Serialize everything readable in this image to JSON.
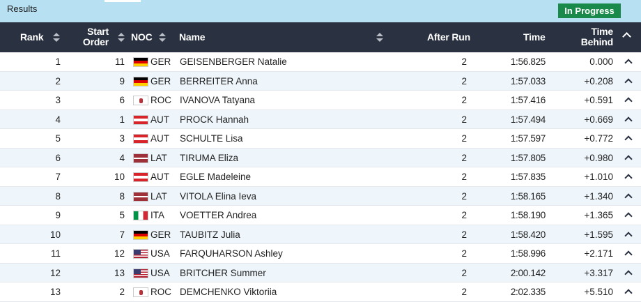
{
  "header": {
    "title": "Results",
    "status": "In Progress",
    "status_color": "#1a8a4a",
    "background_color": "#b7e1f3"
  },
  "columns": {
    "rank": "Rank",
    "start_order": "Start Order",
    "start_order_line1": "Start",
    "start_order_line2": "Order",
    "noc": "NOC",
    "name": "Name",
    "after_run": "After Run",
    "time": "Time",
    "time_behind": "Time Behind",
    "time_behind_line1": "Time",
    "time_behind_line2": "Behind",
    "header_color": "#2a3140"
  },
  "rows": [
    {
      "rank": "1",
      "start_order": "11",
      "noc": "GER",
      "name": "GEISENBERGER Natalie",
      "after_run": "2",
      "time": "1:56.825",
      "behind": "0.000"
    },
    {
      "rank": "2",
      "start_order": "9",
      "noc": "GER",
      "name": "BERREITER Anna",
      "after_run": "2",
      "time": "1:57.033",
      "behind": "+0.208"
    },
    {
      "rank": "3",
      "start_order": "6",
      "noc": "ROC",
      "name": "IVANOVA Tatyana",
      "after_run": "2",
      "time": "1:57.416",
      "behind": "+0.591"
    },
    {
      "rank": "4",
      "start_order": "1",
      "noc": "AUT",
      "name": "PROCK Hannah",
      "after_run": "2",
      "time": "1:57.494",
      "behind": "+0.669"
    },
    {
      "rank": "5",
      "start_order": "3",
      "noc": "AUT",
      "name": "SCHULTE Lisa",
      "after_run": "2",
      "time": "1:57.597",
      "behind": "+0.772"
    },
    {
      "rank": "6",
      "start_order": "4",
      "noc": "LAT",
      "name": "TIRUMA Eliza",
      "after_run": "2",
      "time": "1:57.805",
      "behind": "+0.980"
    },
    {
      "rank": "7",
      "start_order": "10",
      "noc": "AUT",
      "name": "EGLE Madeleine",
      "after_run": "2",
      "time": "1:57.835",
      "behind": "+1.010"
    },
    {
      "rank": "8",
      "start_order": "8",
      "noc": "LAT",
      "name": "VITOLA Elina Ieva",
      "after_run": "2",
      "time": "1:58.165",
      "behind": "+1.340"
    },
    {
      "rank": "9",
      "start_order": "5",
      "noc": "ITA",
      "name": "VOETTER Andrea",
      "after_run": "2",
      "time": "1:58.190",
      "behind": "+1.365"
    },
    {
      "rank": "10",
      "start_order": "7",
      "noc": "GER",
      "name": "TAUBITZ Julia",
      "after_run": "2",
      "time": "1:58.420",
      "behind": "+1.595"
    },
    {
      "rank": "11",
      "start_order": "12",
      "noc": "USA",
      "name": "FARQUHARSON Ashley",
      "after_run": "2",
      "time": "1:58.996",
      "behind": "+2.171"
    },
    {
      "rank": "12",
      "start_order": "13",
      "noc": "USA",
      "name": "BRITCHER Summer",
      "after_run": "2",
      "time": "2:00.142",
      "behind": "+3.317"
    },
    {
      "rank": "13",
      "start_order": "2",
      "noc": "ROC",
      "name": "DEMCHENKO Viktoriia",
      "after_run": "2",
      "time": "2:02.335",
      "behind": "+5.510"
    }
  ]
}
